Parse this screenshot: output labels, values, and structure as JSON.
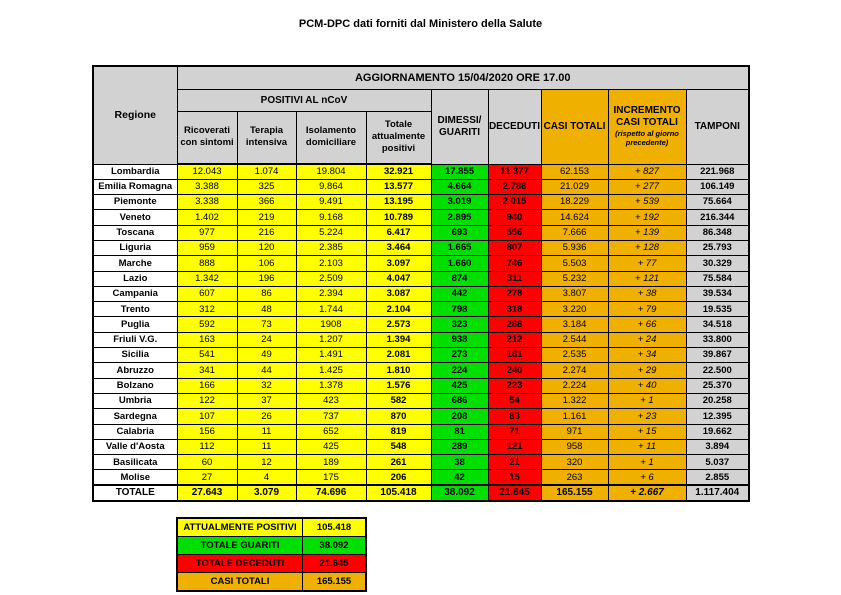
{
  "page_title": "PCM-DPC dati forniti dal Ministero della Salute",
  "colors": {
    "yellow": "#FFFF00",
    "green": "#00DF00",
    "red": "#FF0000",
    "orange": "#F0B000",
    "header_gray": "#D2D2D2",
    "border": "#000000"
  },
  "table": {
    "update_banner": "AGGIORNAMENTO 15/04/2020 ORE 17.00",
    "regione_header": "Regione",
    "positivi_group_header": "POSITIVI AL nCoV",
    "sub_headers": {
      "ricoverati": "Ricoverati con sintomi",
      "terapia": "Terapia intensiva",
      "isolamento": "Isolamento domiciliare",
      "totale_positivi": "Totale attualmente positivi"
    },
    "dimessi_header": "DIMESSI/\nGUARITI",
    "deceduti_header": "DECEDUTI",
    "casi_totali_header": "CASI TOTALI",
    "incremento_header": "INCREMENTO\nCASI  TOTALI",
    "incremento_note": "(rispetto al giorno precedente)",
    "tamponi_header": "TAMPONI"
  },
  "chart_data": {
    "type": "table",
    "title": "AGGIORNAMENTO 15/04/2020 ORE 17.00",
    "columns": [
      "Regione",
      "Ricoverati con sintomi",
      "Terapia intensiva",
      "Isolamento domiciliare",
      "Totale attualmente positivi",
      "DIMESSI/GUARITI",
      "DECEDUTI",
      "CASI TOTALI",
      "INCREMENTO CASI TOTALI (rispetto al giorno precedente)",
      "TAMPONI"
    ],
    "rows": [
      [
        "Lombardia",
        "12.043",
        "1.074",
        "19.804",
        "32.921",
        "17.855",
        "11.377",
        "62.153",
        "+ 827",
        "221.968"
      ],
      [
        "Emilia Romagna",
        "3.388",
        "325",
        "9.864",
        "13.577",
        "4.664",
        "2.788",
        "21.029",
        "+ 277",
        "106.149"
      ],
      [
        "Piemonte",
        "3.338",
        "366",
        "9.491",
        "13.195",
        "3.019",
        "2.015",
        "18.229",
        "+ 539",
        "75.664"
      ],
      [
        "Veneto",
        "1.402",
        "219",
        "9.168",
        "10.789",
        "2.895",
        "940",
        "14.624",
        "+ 192",
        "216.344"
      ],
      [
        "Toscana",
        "977",
        "216",
        "5.224",
        "6.417",
        "693",
        "556",
        "7.666",
        "+ 139",
        "86.348"
      ],
      [
        "Liguria",
        "959",
        "120",
        "2.385",
        "3.464",
        "1.665",
        "807",
        "5.936",
        "+ 128",
        "25.793"
      ],
      [
        "Marche",
        "888",
        "106",
        "2.103",
        "3.097",
        "1.660",
        "746",
        "5.503",
        "+ 77",
        "30.329"
      ],
      [
        "Lazio",
        "1.342",
        "196",
        "2.509",
        "4.047",
        "874",
        "311",
        "5.232",
        "+ 121",
        "75.584"
      ],
      [
        "Campania",
        "607",
        "86",
        "2.394",
        "3.087",
        "442",
        "278",
        "3.807",
        "+ 38",
        "39.534"
      ],
      [
        "Trento",
        "312",
        "48",
        "1.744",
        "2.104",
        "798",
        "318",
        "3.220",
        "+ 79",
        "19.535"
      ],
      [
        "Puglia",
        "592",
        "73",
        "1908",
        "2.573",
        "323",
        "288",
        "3.184",
        "+ 66",
        "34.518"
      ],
      [
        "Friuli V.G.",
        "163",
        "24",
        "1.207",
        "1.394",
        "938",
        "212",
        "2.544",
        "+ 24",
        "33.800"
      ],
      [
        "Sicilia",
        "541",
        "49",
        "1.491",
        "2.081",
        "273",
        "181",
        "2.535",
        "+ 34",
        "39.867"
      ],
      [
        "Abruzzo",
        "341",
        "44",
        "1.425",
        "1.810",
        "224",
        "240",
        "2.274",
        "+ 29",
        "22.500"
      ],
      [
        "Bolzano",
        "166",
        "32",
        "1.378",
        "1.576",
        "425",
        "223",
        "2.224",
        "+ 40",
        "25.370"
      ],
      [
        "Umbria",
        "122",
        "37",
        "423",
        "582",
        "686",
        "54",
        "1.322",
        "+ 1",
        "20.258"
      ],
      [
        "Sardegna",
        "107",
        "26",
        "737",
        "870",
        "208",
        "83",
        "1.161",
        "+ 23",
        "12.395"
      ],
      [
        "Calabria",
        "156",
        "11",
        "652",
        "819",
        "81",
        "71",
        "971",
        "+ 15",
        "19.662"
      ],
      [
        "Valle d'Aosta",
        "112",
        "11",
        "425",
        "548",
        "289",
        "121",
        "958",
        "+ 11",
        "3.894"
      ],
      [
        "Basilicata",
        "60",
        "12",
        "189",
        "261",
        "38",
        "21",
        "320",
        "+ 1",
        "5.037"
      ],
      [
        "Molise",
        "27",
        "4",
        "175",
        "206",
        "42",
        "15",
        "263",
        "+ 6",
        "2.855"
      ]
    ],
    "total_row": [
      "TOTALE",
      "27.643",
      "3.079",
      "74.696",
      "105.418",
      "38.092",
      "21.645",
      "165.155",
      "+ 2.667",
      "1.117.404"
    ]
  },
  "summary": {
    "rows": [
      {
        "label": "ATTUALMENTE POSITIVI",
        "value": "105.418",
        "color": "#FFFF00"
      },
      {
        "label": "TOTALE GUARITI",
        "value": "38.092",
        "color": "#00DF00"
      },
      {
        "label": "TOTALE DECEDUTI",
        "value": "21.645",
        "color": "#FF0000"
      },
      {
        "label": "CASI TOTALI",
        "value": "165.155",
        "color": "#F0B000"
      }
    ]
  }
}
